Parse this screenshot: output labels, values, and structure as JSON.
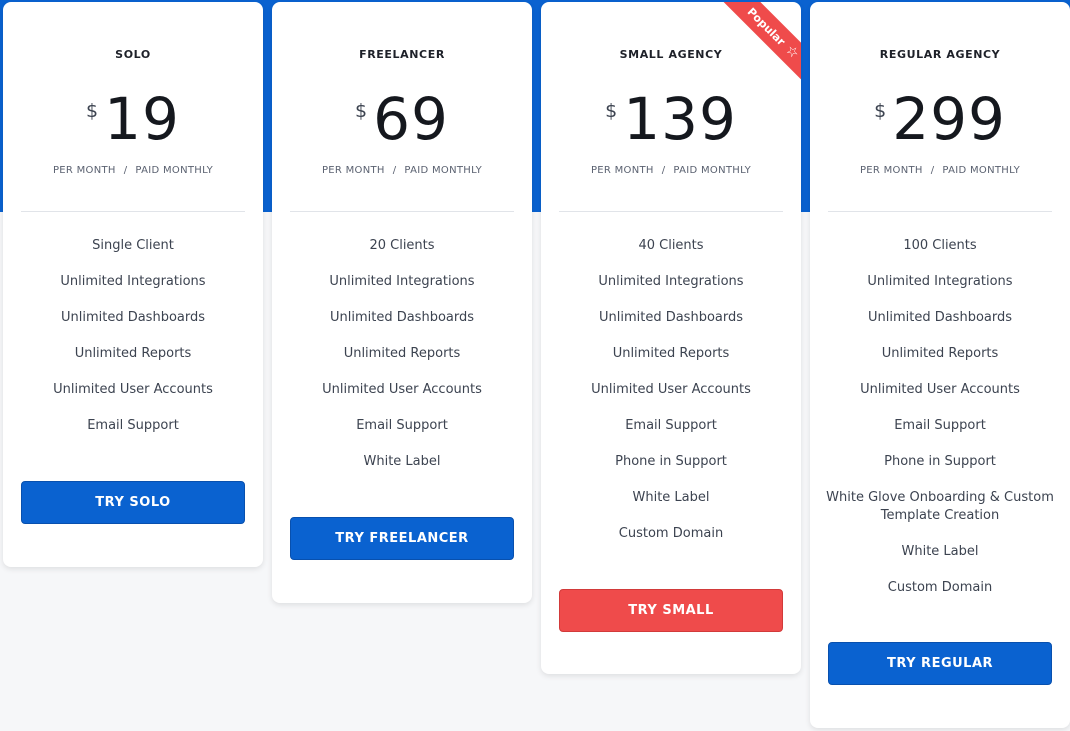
{
  "currency_symbol": "$",
  "period": {
    "per": "PER MONTH",
    "separator": "/",
    "billing": "PAID MONTHLY"
  },
  "ribbon": {
    "label": "Popular",
    "icon": "star-icon",
    "glyph": "☆"
  },
  "colors": {
    "brand_blue": "#0a62d0",
    "accent_red": "#ef4b4b",
    "background": "#f6f7f9"
  },
  "plans": [
    {
      "name": "SOLO",
      "price": "19",
      "features": [
        "Single Client",
        "Unlimited Integrations",
        "Unlimited Dashboards",
        "Unlimited Reports",
        "Unlimited User Accounts",
        "Email Support"
      ],
      "cta": "TRY SOLO"
    },
    {
      "name": "FREELANCER",
      "price": "69",
      "features": [
        "20 Clients",
        "Unlimited Integrations",
        "Unlimited Dashboards",
        "Unlimited Reports",
        "Unlimited User Accounts",
        "Email Support",
        "White Label"
      ],
      "cta": "TRY FREELANCER"
    },
    {
      "name": "SMALL AGENCY",
      "price": "139",
      "features": [
        "40 Clients",
        "Unlimited Integrations",
        "Unlimited Dashboards",
        "Unlimited Reports",
        "Unlimited User Accounts",
        "Email Support",
        "Phone in Support",
        "White Label",
        "Custom Domain"
      ],
      "cta": "TRY SMALL"
    },
    {
      "name": "REGULAR AGENCY",
      "price": "299",
      "features": [
        "100 Clients",
        "Unlimited Integrations",
        "Unlimited Dashboards",
        "Unlimited Reports",
        "Unlimited User Accounts",
        "Email Support",
        "Phone in Support",
        "White Glove Onboarding & Custom Template Creation",
        "White Label",
        "Custom Domain"
      ],
      "cta": "TRY REGULAR"
    }
  ]
}
